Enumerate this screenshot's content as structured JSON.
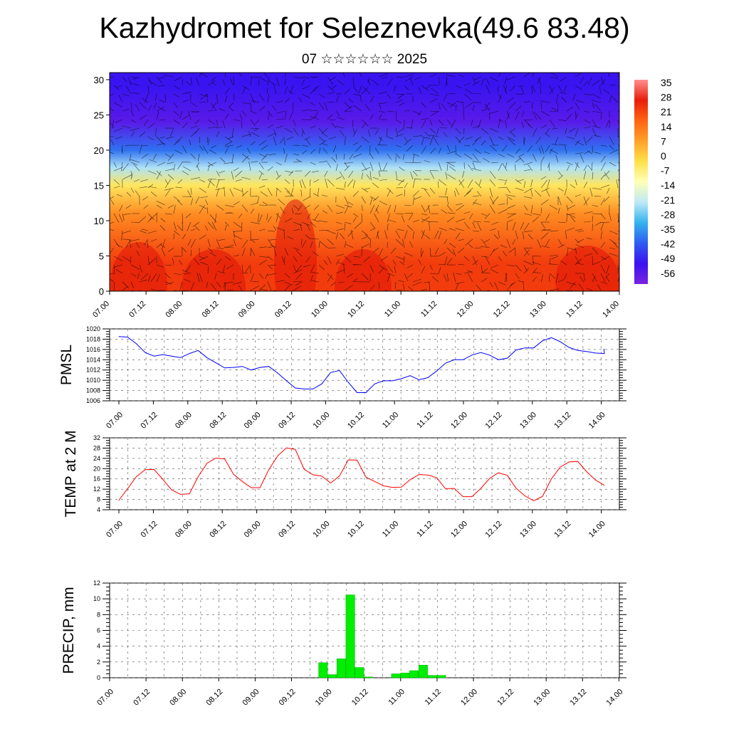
{
  "header": {
    "title": "Kazhydromet for Seleznevka(49.6 83.48)",
    "subtitle": "07 ☆☆☆☆☆☆ 2025"
  },
  "time_ticks": [
    "07.00",
    "07.12",
    "08.00",
    "08.12",
    "09.00",
    "09.12",
    "10.00",
    "10.12",
    "11.00",
    "11.12",
    "12.00",
    "12.12",
    "13.00",
    "13.12",
    "14.00"
  ],
  "chart_data": [
    {
      "type": "heatmap",
      "x": [
        "07.00",
        "07.12",
        "08.00",
        "08.12",
        "09.00",
        "09.12",
        "10.00",
        "10.12",
        "11.00",
        "11.12",
        "12.00",
        "12.12",
        "13.00",
        "13.12",
        "14.00"
      ],
      "y_ticks": [
        "0",
        "5",
        "10",
        "15",
        "20",
        "25",
        "30"
      ],
      "ylim": [
        0,
        31
      ],
      "colorbar_labels": [
        "35",
        "28",
        "21",
        "14",
        "7",
        "0",
        "-7",
        "-14",
        "-21",
        "-28",
        "-35",
        "-42",
        "-49",
        "-56"
      ],
      "colorbar_range": [
        -60,
        38
      ],
      "colors": {
        "stops": [
          "#7a22e0",
          "#3a12f0",
          "#2f5cf0",
          "#35b2ee",
          "#bfe9f7",
          "#ffffb8",
          "#ffe04a",
          "#ffa12a",
          "#ff6412",
          "#e81e0a",
          "#ff8f8f"
        ]
      },
      "layers": [
        {
          "z": [
            0,
            8
          ],
          "value": 24
        },
        {
          "z": [
            8,
            14
          ],
          "value": 12
        },
        {
          "z": [
            14,
            16
          ],
          "value": -3
        },
        {
          "z": [
            16,
            19
          ],
          "value": -22
        },
        {
          "z": [
            19,
            21
          ],
          "value": -38
        },
        {
          "z": [
            21,
            27
          ],
          "value": -55
        },
        {
          "z": [
            27,
            31
          ],
          "value": -50
        }
      ],
      "wind_barbs": true
    },
    {
      "type": "line",
      "ylabel": "PMSL",
      "ylim": [
        1006,
        1020
      ],
      "y_ticks": [
        "1006",
        "1008",
        "1010",
        "1012",
        "1014",
        "1016",
        "1018",
        "1020"
      ],
      "x_ticks": [
        "07.00",
        "07.12",
        "08.00",
        "08.12",
        "09.00",
        "09.12",
        "10.00",
        "10.12",
        "11.00",
        "11.12",
        "12.00",
        "12.12",
        "13.00",
        "13.12",
        "14.00"
      ],
      "color": "#0000ff",
      "series": [
        {
          "x_hours": [
            0,
            3,
            6,
            9,
            12,
            15,
            18,
            21,
            24,
            27,
            30,
            33,
            36,
            39,
            42,
            45,
            48,
            51,
            54,
            57,
            60,
            63,
            66,
            69,
            72,
            75,
            78,
            81,
            84,
            87,
            90,
            93,
            96,
            99,
            102,
            105,
            108,
            111,
            114,
            117,
            120,
            123,
            126,
            129,
            132,
            135,
            138,
            141,
            144,
            147,
            150,
            153,
            156,
            159,
            162,
            165
          ],
          "values": [
            1018.5,
            1018.4,
            1017.1,
            1015.4,
            1014.7,
            1015.0,
            1014.7,
            1014.4,
            1015.2,
            1015.8,
            1014.4,
            1013.4,
            1012.4,
            1012.5,
            1012.7,
            1012.0,
            1012.5,
            1012.7,
            1011.4,
            1009.9,
            1008.5,
            1008.3,
            1008.3,
            1009.3,
            1011.5,
            1011.9,
            1009.6,
            1007.6,
            1007.6,
            1009.3,
            1009.9,
            1009.9,
            1010.3,
            1010.9,
            1010.1,
            1010.5,
            1011.8,
            1013.3,
            1014.0,
            1014.0,
            1014.9,
            1015.4,
            1014.9,
            1014.0,
            1014.3,
            1015.9,
            1016.3,
            1016.3,
            1017.7,
            1018.3,
            1017.5,
            1016.4,
            1015.8,
            1015.6,
            1015.3,
            1015.2
          ]
        }
      ],
      "x_end_value": 1016.1
    },
    {
      "type": "line",
      "ylabel": "TEMP at 2 M",
      "ylim": [
        4,
        32
      ],
      "y_ticks": [
        "4",
        "8",
        "12",
        "16",
        "20",
        "24",
        "28",
        "32"
      ],
      "x_ticks": [
        "07.00",
        "07.12",
        "08.00",
        "08.12",
        "09.00",
        "09.12",
        "10.00",
        "10.12",
        "11.00",
        "11.12",
        "12.00",
        "12.12",
        "13.00",
        "13.12",
        "14.00"
      ],
      "color": "#ff0000",
      "series": [
        {
          "x_hours": [
            0,
            3,
            6,
            9,
            12,
            15,
            18,
            21,
            24,
            27,
            30,
            33,
            36,
            39,
            42,
            45,
            48,
            51,
            54,
            57,
            60,
            63,
            66,
            69,
            72,
            75,
            78,
            81,
            84,
            87,
            90,
            93,
            96,
            99,
            102,
            105,
            108,
            111,
            114,
            117,
            120,
            123,
            126,
            129,
            132,
            135,
            138,
            141,
            144,
            147,
            150,
            153,
            156,
            159,
            162,
            165
          ],
          "values": [
            7.6,
            12.2,
            16.9,
            19.6,
            19.7,
            15.8,
            11.7,
            10.0,
            10.2,
            16.9,
            22.1,
            24.1,
            23.8,
            17.8,
            15.0,
            12.6,
            12.6,
            19.6,
            25.0,
            28.1,
            27.5,
            19.8,
            17.6,
            17.1,
            14.4,
            17.1,
            23.4,
            23.3,
            16.7,
            15.0,
            13.3,
            12.7,
            12.8,
            15.7,
            17.7,
            17.5,
            16.5,
            12.2,
            12.3,
            9.1,
            9.1,
            12.3,
            16.2,
            18.4,
            17.4,
            12.4,
            9.4,
            7.5,
            9.2,
            16.0,
            20.6,
            22.6,
            22.8,
            18.8,
            15.6,
            13.5
          ]
        }
      ],
      "x_end_value": 13.6
    },
    {
      "type": "bar",
      "ylabel": "PRECIP, mm",
      "ylim": [
        0,
        12
      ],
      "y_ticks": [
        "0",
        "2",
        "4",
        "6",
        "8",
        "10",
        "12"
      ],
      "x_ticks": [
        "07.00",
        "07.12",
        "08.00",
        "08.12",
        "09.00",
        "09.12",
        "10.00",
        "10.12",
        "11.00",
        "11.12",
        "12.00",
        "12.12",
        "13.00",
        "13.12",
        "14.00"
      ],
      "color": "#00ee00",
      "bars": [
        {
          "x_hours": 69,
          "value": 1.9
        },
        {
          "x_hours": 72,
          "value": 0.4
        },
        {
          "x_hours": 75,
          "value": 2.4
        },
        {
          "x_hours": 78,
          "value": 10.5
        },
        {
          "x_hours": 81,
          "value": 1.3
        },
        {
          "x_hours": 84,
          "value": 0.1
        },
        {
          "x_hours": 93,
          "value": 0.5
        },
        {
          "x_hours": 96,
          "value": 0.6
        },
        {
          "x_hours": 99,
          "value": 0.9
        },
        {
          "x_hours": 102,
          "value": 1.6
        },
        {
          "x_hours": 105,
          "value": 0.3
        },
        {
          "x_hours": 108,
          "value": 0.3
        }
      ]
    }
  ]
}
